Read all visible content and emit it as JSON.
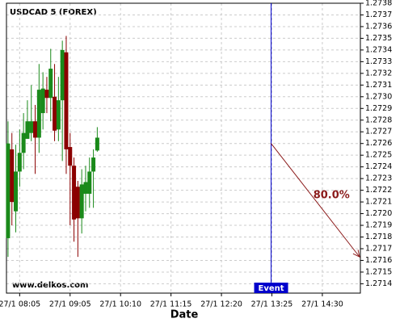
{
  "chart_data": {
    "type": "candlestick",
    "title": "USDCAD 5 (FOREX)",
    "x_label": "Date",
    "watermark": "www.delkos.com",
    "x": [
      470,
      475,
      480,
      485,
      490,
      495,
      500,
      505,
      510,
      515,
      520,
      525,
      530,
      535,
      540,
      545,
      550,
      555,
      560,
      565,
      570,
      575,
      580,
      585
    ],
    "open": [
      1.27179,
      1.27255,
      1.27202,
      1.27236,
      1.27252,
      1.27264,
      1.27269,
      1.27279,
      1.27265,
      1.27286,
      1.27306,
      1.27299,
      1.273,
      1.27272,
      1.27297,
      1.27338,
      1.27257,
      1.27241,
      1.27223,
      1.27196,
      1.27217,
      1.27217,
      1.27236,
      1.27254
    ],
    "high": [
      1.27279,
      1.27269,
      1.27259,
      1.27272,
      1.27286,
      1.27297,
      1.2731,
      1.27293,
      1.27328,
      1.27321,
      1.27317,
      1.27341,
      1.27328,
      1.27317,
      1.27348,
      1.27352,
      1.27269,
      1.27248,
      1.27228,
      1.27238,
      1.27241,
      1.27248,
      1.27255,
      1.27274
    ],
    "low": [
      1.27163,
      1.2719,
      1.27184,
      1.27223,
      1.27238,
      1.27264,
      1.27262,
      1.27234,
      1.27252,
      1.27272,
      1.27286,
      1.27279,
      1.27262,
      1.27262,
      1.27245,
      1.27234,
      1.2719,
      1.27176,
      1.27163,
      1.27183,
      1.27202,
      1.27205,
      1.27205,
      1.27253
    ],
    "close": [
      1.2726,
      1.2721,
      1.27236,
      1.27252,
      1.27269,
      1.27279,
      1.27279,
      1.27265,
      1.27306,
      1.27307,
      1.27299,
      1.27324,
      1.27271,
      1.27297,
      1.2734,
      1.27255,
      1.27241,
      1.27195,
      1.27196,
      1.27225,
      1.27227,
      1.27236,
      1.27248,
      1.27265
    ],
    "up_color": "#1a8a1a",
    "down_color": "#8b0000",
    "event": {
      "x": 809,
      "label": "Event",
      "color": "#0000cc"
    },
    "projection": {
      "x": [
        809,
        924
      ],
      "values": [
        1.2726,
        1.27163
      ],
      "label": "80.0%",
      "color": "#8b1a1a"
    },
    "xlim": [
      468,
      924
    ],
    "xticks": [
      {
        "value": 485,
        "label": "27/1 08:05"
      },
      {
        "value": 550,
        "label": "27/1 09:05"
      },
      {
        "value": 615,
        "label": "27/1 10:10"
      },
      {
        "value": 680,
        "label": "27/1 11:15"
      },
      {
        "value": 745,
        "label": "27/1 12:20"
      },
      {
        "value": 810,
        "label": "27/1 13:25"
      },
      {
        "value": 875,
        "label": "27/1 14:30"
      }
    ],
    "ylim": [
      1.27132,
      1.2738
    ],
    "yticks": [
      1.2714,
      1.2715,
      1.2716,
      1.2717,
      1.2718,
      1.2719,
      {
        "value": 1.272,
        "label": "1.2720"
      },
      1.2721,
      1.2722,
      1.2723,
      1.2724,
      1.2725,
      1.2726,
      1.2727,
      1.2728,
      1.2729,
      {
        "value": 1.273,
        "label": "1.2730"
      },
      1.2731,
      1.2732,
      1.2733,
      1.2734,
      1.2735,
      1.2736,
      1.2737,
      1.2738
    ],
    "grid": true
  }
}
